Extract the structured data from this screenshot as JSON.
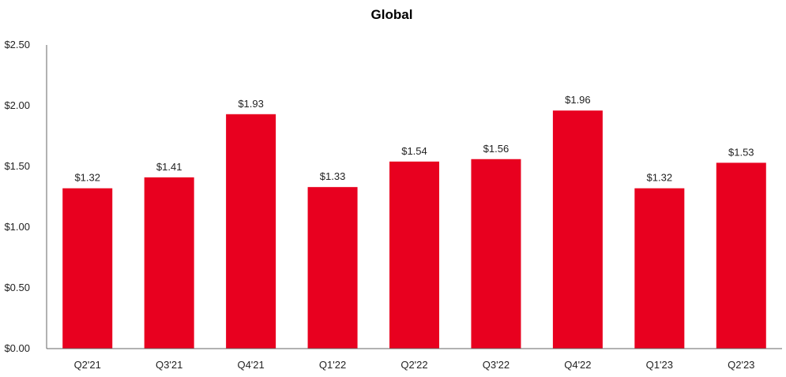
{
  "chart_data": {
    "type": "bar",
    "title": "Global",
    "xlabel": "",
    "ylabel": "",
    "ylim": [
      0,
      2.5
    ],
    "yticks": [
      0,
      0.5,
      1.0,
      1.5,
      2.0,
      2.5
    ],
    "ytick_labels": [
      "$0.00",
      "$0.50",
      "$1.00",
      "$1.50",
      "$2.00",
      "$2.50"
    ],
    "categories": [
      "Q2'21",
      "Q3'21",
      "Q4'21",
      "Q1'22",
      "Q2'22",
      "Q3'22",
      "Q4'22",
      "Q1'23",
      "Q2'23"
    ],
    "values": [
      1.32,
      1.41,
      1.93,
      1.33,
      1.54,
      1.56,
      1.96,
      1.32,
      1.53
    ],
    "data_labels": [
      "$1.32",
      "$1.41",
      "$1.93",
      "$1.33",
      "$1.54",
      "$1.56",
      "$1.96",
      "$1.32",
      "$1.53"
    ],
    "bar_color": "#e8001f",
    "grid": false,
    "legend": "none"
  }
}
